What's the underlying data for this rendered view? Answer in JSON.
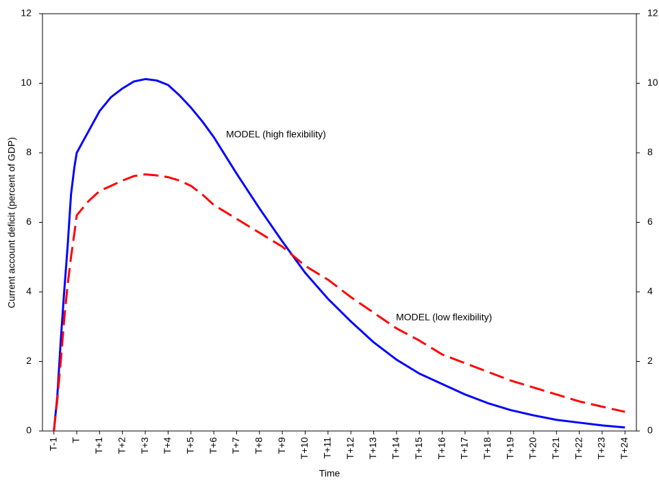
{
  "chart_data": {
    "type": "line",
    "xlabel": "Time",
    "ylabel": "Current account deficit (percent of GDP)",
    "annotations": [
      "MODEL (high flexibility)",
      "MODEL (low flexibility)"
    ],
    "x": [
      -1,
      -0.85,
      -0.7,
      -0.55,
      -0.4,
      -0.25,
      -0.1,
      0,
      0.5,
      1,
      1.5,
      2,
      2.5,
      3,
      3.5,
      4,
      4.5,
      5,
      5.5,
      6,
      7,
      8,
      9,
      10,
      11,
      12,
      13,
      14,
      15,
      16,
      17,
      18,
      19,
      20,
      21,
      22,
      23,
      24
    ],
    "series": [
      {
        "name": "MODEL (high flexibility)",
        "color": "#0000ff",
        "dashed": false,
        "values": [
          0,
          1.0,
          2.6,
          4.0,
          5.3,
          6.8,
          7.6,
          8.0,
          8.6,
          9.2,
          9.6,
          9.85,
          10.05,
          10.12,
          10.08,
          9.95,
          9.65,
          9.3,
          8.9,
          8.45,
          7.4,
          6.4,
          5.45,
          4.55,
          3.8,
          3.15,
          2.55,
          2.05,
          1.65,
          1.35,
          1.05,
          0.8,
          0.6,
          0.45,
          0.32,
          0.24,
          0.16,
          0.1
        ]
      },
      {
        "name": "MODEL (low flexibility)",
        "color": "#ff0000",
        "dashed": true,
        "values": [
          0,
          0.9,
          2.0,
          3.2,
          4.2,
          5.0,
          5.7,
          6.2,
          6.6,
          6.9,
          7.05,
          7.2,
          7.33,
          7.38,
          7.35,
          7.3,
          7.2,
          7.05,
          6.8,
          6.5,
          6.1,
          5.7,
          5.3,
          4.75,
          4.35,
          3.85,
          3.4,
          2.95,
          2.6,
          2.2,
          1.95,
          1.7,
          1.45,
          1.25,
          1.05,
          0.85,
          0.7,
          0.55
        ]
      }
    ],
    "xlim": [
      -1.5,
      24.5
    ],
    "xticks": [
      {
        "value": -1,
        "label": "T-1"
      },
      {
        "value": 0,
        "label": "T"
      },
      {
        "value": 1,
        "label": "T+1"
      },
      {
        "value": 2,
        "label": "T+2"
      },
      {
        "value": 3,
        "label": "T+3"
      },
      {
        "value": 4,
        "label": "T+4"
      },
      {
        "value": 5,
        "label": "T+5"
      },
      {
        "value": 6,
        "label": "T+6"
      },
      {
        "value": 7,
        "label": "T+7"
      },
      {
        "value": 8,
        "label": "T+8"
      },
      {
        "value": 9,
        "label": "T+9"
      },
      {
        "value": 10,
        "label": "T+10"
      },
      {
        "value": 11,
        "label": "T+11"
      },
      {
        "value": 12,
        "label": "T+12"
      },
      {
        "value": 13,
        "label": "T+13"
      },
      {
        "value": 14,
        "label": "T+14"
      },
      {
        "value": 15,
        "label": "T+15"
      },
      {
        "value": 16,
        "label": "T+16"
      },
      {
        "value": 17,
        "label": "T+17"
      },
      {
        "value": 18,
        "label": "T+18"
      },
      {
        "value": 19,
        "label": "T+19"
      },
      {
        "value": 20,
        "label": "T+20"
      },
      {
        "value": 21,
        "label": "T+21"
      },
      {
        "value": 22,
        "label": "T+22"
      },
      {
        "value": 23,
        "label": "T+23"
      },
      {
        "value": 24,
        "label": "T+24"
      }
    ],
    "ylim": [
      0,
      12
    ],
    "yticks": [
      0,
      2,
      4,
      6,
      8,
      10,
      12
    ],
    "y2lim": [
      0,
      12
    ],
    "y2ticks": [
      0,
      2,
      4,
      6,
      8,
      10,
      12
    ],
    "grid": false
  }
}
